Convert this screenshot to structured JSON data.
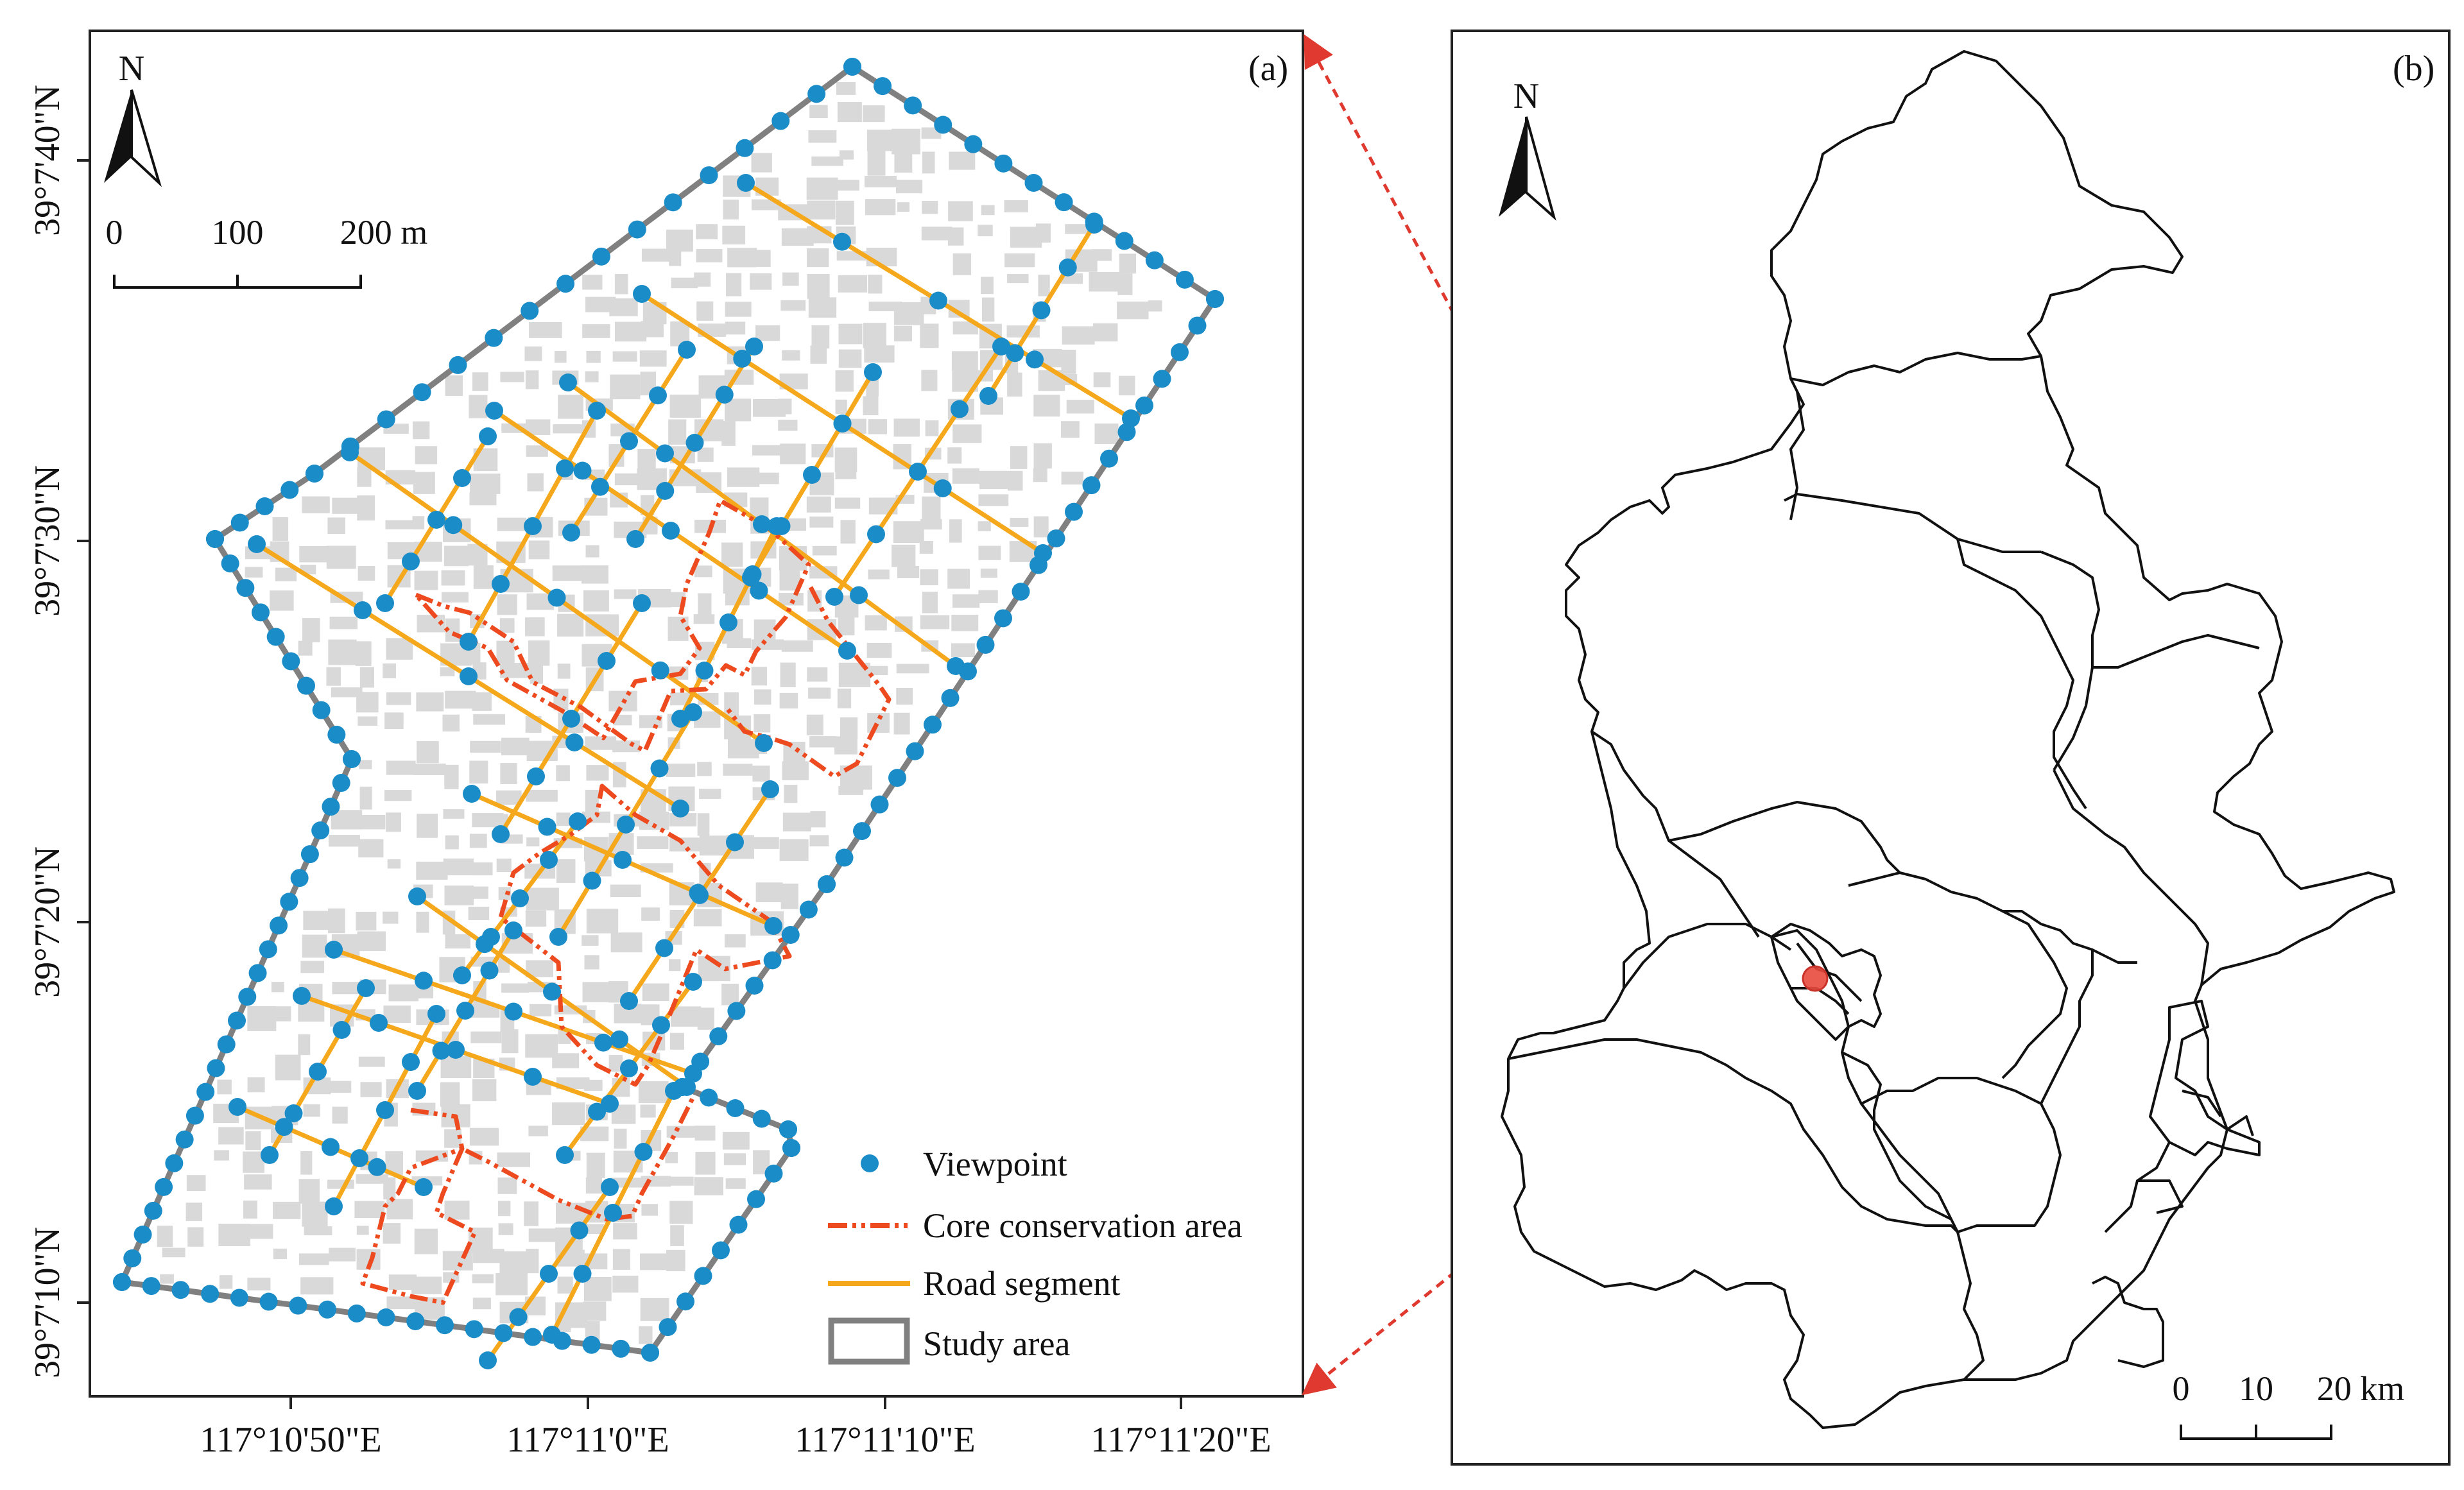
{
  "panel_a": {
    "label": "(a)",
    "north_label": "N",
    "scale_labels": [
      "0",
      "100",
      "200 m"
    ],
    "lat_labels": [
      "39°7'40\"N",
      "39°7'30\"N",
      "39°7'20\"N",
      "39°7'10\"N"
    ],
    "lon_labels": [
      "117°10'50\"E",
      "117°11'0\"E",
      "117°11'10\"E",
      "117°11'20\"E"
    ],
    "legend": {
      "viewpoint": "Viewpoint",
      "core": "Core conservation area",
      "road": "Road segment",
      "study": "Study area"
    }
  },
  "panel_b": {
    "label": "(b)",
    "north_label": "N",
    "scale_labels": [
      "0",
      "10",
      "20 km"
    ]
  },
  "colors": {
    "viewpoint": "#1a8cc8",
    "road": "#f5a81c",
    "core": "#ee4a1f",
    "study": "#808080",
    "building": "#d9d9d9",
    "location": "#e84a3c",
    "leader": "#e03a30"
  }
}
